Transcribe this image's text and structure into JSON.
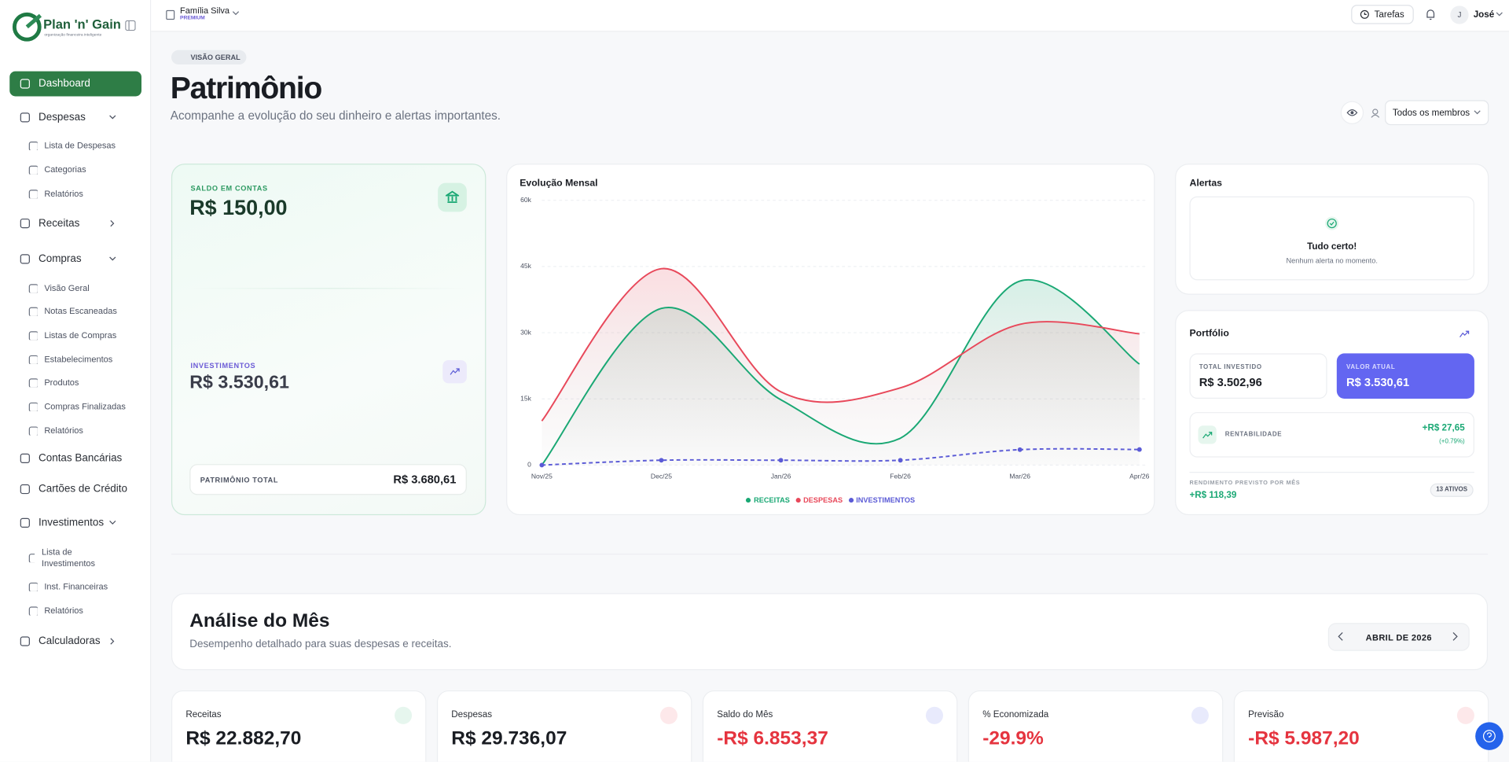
{
  "sidebar": {
    "brand": "Plan 'n' Gain",
    "tagline": "organização financeira inteligente",
    "nav": [
      {
        "label": "Dashboard"
      },
      {
        "label": "Despesas",
        "items": [
          "Lista de Despesas",
          "Categorias",
          "Relatórios"
        ]
      },
      {
        "label": "Receitas"
      },
      {
        "label": "Compras",
        "items": [
          "Visão Geral",
          "Notas Escaneadas",
          "Listas de Compras",
          "Estabelecimentos",
          "Produtos",
          "Compras Finalizadas",
          "Relatórios"
        ]
      },
      {
        "label": "Contas Bancárias"
      },
      {
        "label": "Cartões de Crédito"
      },
      {
        "label": "Investimentos",
        "items": [
          "Lista de Investimentos",
          "Inst. Financeiras",
          "Relatórios"
        ]
      },
      {
        "label": "Calculadoras"
      }
    ]
  },
  "topbar": {
    "workspace": "Família Silva",
    "plan": "PREMIUM",
    "tasks": "Tarefas",
    "avatar": "J",
    "user": "José"
  },
  "header": {
    "badge": "VISÃO GERAL",
    "title": "Patrimônio",
    "subtitle": "Acompanhe a evolução do seu dinheiro e alertas importantes.",
    "filter": "Todos os membros"
  },
  "balance": {
    "accounts_label": "SALDO EM CONTAS",
    "accounts_value": "R$ 150,00",
    "investments_label": "INVESTIMENTOS",
    "investments_value": "R$ 3.530,61",
    "total_label": "PATRIMÔNIO TOTAL",
    "total_value": "R$ 3.680,61"
  },
  "chart_data": {
    "type": "line",
    "title": "Evolução Mensal",
    "categories": [
      "Nov/25",
      "Dec/25",
      "Jan/26",
      "Feb/26",
      "Mar/26",
      "Apr/26"
    ],
    "series": [
      {
        "name": "RECEITAS",
        "color": "#1aa874",
        "values": [
          0,
          35500,
          14800,
          6100,
          41700,
          22883
        ],
        "area": true
      },
      {
        "name": "DESPESAS",
        "color": "#e8485a",
        "values": [
          10000,
          44500,
          16600,
          17500,
          31900,
          29736
        ],
        "area": true
      },
      {
        "name": "INVESTIMENTOS",
        "color": "#5b5bd6",
        "values": [
          0,
          1100,
          1100,
          1100,
          3500,
          3531
        ],
        "line_style": "dashed",
        "markers": true
      }
    ],
    "ylim": [
      0,
      60000
    ],
    "yticks": [
      0,
      {
        "value": 15000,
        "label": "15k"
      },
      {
        "value": 30000,
        "label": "30k"
      },
      {
        "value": 45000,
        "label": "45k"
      },
      {
        "value": 60000,
        "label": "60k"
      }
    ],
    "grid": true,
    "legend": "bottom"
  },
  "alerts": {
    "title": "Alertas",
    "status": "Tudo certo!",
    "message": "Nenhum alerta no momento."
  },
  "portfolio": {
    "title": "Portfólio",
    "invested_label": "TOTAL INVESTIDO",
    "invested_value": "R$ 3.502,96",
    "current_label": "VALOR ATUAL",
    "current_value": "R$ 3.530,61",
    "return_label": "RENTABILIDADE",
    "return_value": "+R$ 27,65",
    "return_pct": "(+0.79%)",
    "monthly_label": "RENDIMENTO PREVISTO POR MÊS",
    "monthly_value": "+R$ 118,39",
    "assets": "13 ATIVOS"
  },
  "analysis": {
    "title": "Análise do Mês",
    "subtitle": "Desempenho detalhado para suas despesas e receitas.",
    "month": "ABRIL DE 2026"
  },
  "kpis": [
    {
      "label": "Receitas",
      "value": "R$ 22.882,70"
    },
    {
      "label": "Despesas",
      "value": "R$ 29.736,07"
    },
    {
      "label": "Saldo do Mês",
      "value": "-R$ 6.853,37"
    },
    {
      "label": "% Economizada",
      "value": "-29.9%"
    },
    {
      "label": "Previsão",
      "value": "-R$ 5.987,20"
    }
  ]
}
